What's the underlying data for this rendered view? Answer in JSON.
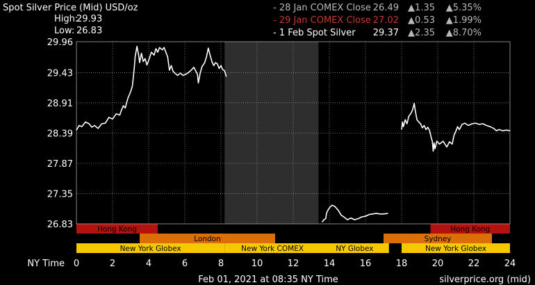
{
  "header": {
    "title": "Spot Silver Price (Mid) USD/oz",
    "high_label": "High:",
    "high_value": "29.93",
    "low_label": "Low:",
    "low_value": "26.83"
  },
  "legend": [
    {
      "label": "- 28 Jan COMEX Close",
      "price": "26.49",
      "change": "▲1.35",
      "pct": "▲5.35%",
      "color": "#b9b9b9"
    },
    {
      "label": "- 29 Jan COMEX Close",
      "price": "27.02",
      "change": "▲0.53",
      "pct": "▲1.99%",
      "color": "#c8392f"
    },
    {
      "label": "- 1 Feb Spot Silver",
      "price": "29.37",
      "change": "▲2.35",
      "pct": "▲8.70%",
      "color": "#ffffff"
    }
  ],
  "footer": {
    "timestamp": "Feb 01, 2021 at 08:35 NY Time",
    "source": "silverprice.org (mid)"
  },
  "colors": {
    "background": "#000000",
    "grid": "#9a9a9a",
    "closed_band": "#2e2e2e",
    "hong_kong": "#b4120e",
    "london": "#dc6e08",
    "new_york": "#f5c800",
    "line": "#ffffff"
  },
  "chart_data": {
    "type": "line",
    "xlabel": "NY Time",
    "xlim": [
      0,
      24
    ],
    "ylim": [
      26.83,
      29.96
    ],
    "x_ticks": [
      0,
      2,
      4,
      6,
      8,
      10,
      12,
      14,
      16,
      18,
      20,
      22,
      24
    ],
    "y_ticks": [
      "26.83",
      "27.35",
      "27.87",
      "28.39",
      "28.91",
      "29.43",
      "29.96"
    ],
    "closed_range": [
      8.2,
      13.4
    ],
    "sessions": [
      {
        "label": "Hong Kong",
        "row": 0,
        "start": 0,
        "end": 4.5,
        "color": "#b4120e"
      },
      {
        "label": "Hong Kong",
        "row": 0,
        "start": 19.6,
        "end": 24,
        "color": "#b4120e"
      },
      {
        "label": "London",
        "row": 1,
        "start": 3.5,
        "end": 11.0,
        "color": "#dc6e08"
      },
      {
        "label": "Sydney",
        "row": 1,
        "start": 17.0,
        "end": 23.0,
        "color": "#dc6e08"
      },
      {
        "label": "New York Globex",
        "row": 2,
        "start": 0,
        "end": 8.2,
        "color": "#f5c800"
      },
      {
        "label": "New York COMEX",
        "row": 2,
        "start": 8.2,
        "end": 13.5,
        "color": "#f5c800"
      },
      {
        "label": "NY Globex",
        "row": 2,
        "start": 13.5,
        "end": 17.3,
        "color": "#f5c800"
      },
      {
        "label": "New York Globex",
        "row": 2,
        "start": 18.0,
        "end": 24,
        "color": "#f5c800"
      }
    ],
    "series": [
      {
        "values": [
          [
            0,
            28.44
          ],
          [
            0.15,
            28.52
          ],
          [
            0.3,
            28.5
          ],
          [
            0.5,
            28.58
          ],
          [
            0.7,
            28.55
          ],
          [
            0.85,
            28.49
          ],
          [
            1.0,
            28.52
          ],
          [
            1.2,
            28.47
          ],
          [
            1.4,
            28.55
          ],
          [
            1.6,
            28.56
          ],
          [
            1.8,
            28.66
          ],
          [
            2.0,
            28.63
          ],
          [
            2.2,
            28.72
          ],
          [
            2.4,
            28.7
          ],
          [
            2.5,
            28.79
          ],
          [
            2.6,
            28.86
          ],
          [
            2.7,
            28.82
          ],
          [
            2.85,
            28.99
          ],
          [
            3.0,
            29.1
          ],
          [
            3.1,
            29.2
          ],
          [
            3.2,
            29.5
          ],
          [
            3.25,
            29.7
          ],
          [
            3.35,
            29.88
          ],
          [
            3.45,
            29.72
          ],
          [
            3.5,
            29.6
          ],
          [
            3.6,
            29.76
          ],
          [
            3.7,
            29.62
          ],
          [
            3.8,
            29.67
          ],
          [
            3.9,
            29.56
          ],
          [
            4.0,
            29.64
          ],
          [
            4.15,
            29.78
          ],
          [
            4.3,
            29.73
          ],
          [
            4.4,
            29.84
          ],
          [
            4.5,
            29.78
          ],
          [
            4.6,
            29.86
          ],
          [
            4.75,
            29.82
          ],
          [
            4.85,
            29.86
          ],
          [
            4.95,
            29.78
          ],
          [
            5.05,
            29.7
          ],
          [
            5.1,
            29.58
          ],
          [
            5.15,
            29.47
          ],
          [
            5.25,
            29.55
          ],
          [
            5.35,
            29.45
          ],
          [
            5.45,
            29.42
          ],
          [
            5.6,
            29.38
          ],
          [
            5.75,
            29.42
          ],
          [
            5.9,
            29.38
          ],
          [
            6.05,
            29.4
          ],
          [
            6.2,
            29.43
          ],
          [
            6.35,
            29.47
          ],
          [
            6.5,
            29.52
          ],
          [
            6.6,
            29.46
          ],
          [
            6.7,
            29.4
          ],
          [
            6.75,
            29.25
          ],
          [
            6.85,
            29.42
          ],
          [
            6.95,
            29.53
          ],
          [
            7.1,
            29.6
          ],
          [
            7.2,
            29.7
          ],
          [
            7.3,
            29.85
          ],
          [
            7.4,
            29.73
          ],
          [
            7.5,
            29.62
          ],
          [
            7.6,
            29.55
          ],
          [
            7.7,
            29.6
          ],
          [
            7.8,
            29.58
          ],
          [
            7.9,
            29.5
          ],
          [
            8.0,
            29.55
          ],
          [
            8.1,
            29.48
          ],
          [
            8.2,
            29.46
          ],
          [
            8.3,
            29.36
          ]
        ]
      },
      {
        "values": [
          [
            13.6,
            26.86
          ],
          [
            13.7,
            26.9
          ],
          [
            13.8,
            26.92
          ],
          [
            13.85,
            27.02
          ],
          [
            13.95,
            27.08
          ],
          [
            14.05,
            27.12
          ],
          [
            14.15,
            27.15
          ],
          [
            14.3,
            27.13
          ],
          [
            14.5,
            27.06
          ],
          [
            14.65,
            26.98
          ],
          [
            14.8,
            26.95
          ],
          [
            15.0,
            26.9
          ],
          [
            15.2,
            26.93
          ],
          [
            15.4,
            26.9
          ],
          [
            15.6,
            26.92
          ],
          [
            15.8,
            26.95
          ],
          [
            16.0,
            26.96
          ],
          [
            16.2,
            26.99
          ],
          [
            16.4,
            27.0
          ],
          [
            16.6,
            27.01
          ],
          [
            16.8,
            27.0
          ],
          [
            17.0,
            27.0
          ],
          [
            17.25,
            27.01
          ]
        ]
      },
      {
        "values": [
          [
            18.0,
            28.45
          ],
          [
            18.05,
            28.58
          ],
          [
            18.1,
            28.5
          ],
          [
            18.2,
            28.62
          ],
          [
            18.3,
            28.55
          ],
          [
            18.4,
            28.68
          ],
          [
            18.5,
            28.72
          ],
          [
            18.6,
            28.78
          ],
          [
            18.7,
            28.9
          ],
          [
            18.75,
            28.79
          ],
          [
            18.85,
            28.62
          ],
          [
            18.95,
            28.58
          ],
          [
            19.05,
            28.55
          ],
          [
            19.15,
            28.48
          ],
          [
            19.25,
            28.52
          ],
          [
            19.35,
            28.45
          ],
          [
            19.45,
            28.49
          ],
          [
            19.55,
            28.43
          ],
          [
            19.65,
            28.3
          ],
          [
            19.7,
            28.25
          ],
          [
            19.75,
            28.08
          ],
          [
            19.8,
            28.22
          ],
          [
            19.85,
            28.12
          ],
          [
            19.95,
            28.25
          ],
          [
            20.1,
            28.2
          ],
          [
            20.3,
            28.25
          ],
          [
            20.5,
            28.15
          ],
          [
            20.65,
            28.24
          ],
          [
            20.8,
            28.2
          ],
          [
            20.9,
            28.35
          ],
          [
            21.0,
            28.42
          ],
          [
            21.1,
            28.5
          ],
          [
            21.2,
            28.45
          ],
          [
            21.35,
            28.54
          ],
          [
            21.5,
            28.56
          ],
          [
            21.7,
            28.52
          ],
          [
            21.9,
            28.55
          ],
          [
            22.1,
            28.56
          ],
          [
            22.3,
            28.54
          ],
          [
            22.5,
            28.55
          ],
          [
            22.7,
            28.52
          ],
          [
            22.9,
            28.5
          ],
          [
            23.1,
            28.47
          ],
          [
            23.25,
            28.43
          ],
          [
            23.4,
            28.45
          ],
          [
            23.6,
            28.43
          ],
          [
            23.8,
            28.44
          ],
          [
            24.0,
            28.43
          ]
        ]
      }
    ]
  }
}
